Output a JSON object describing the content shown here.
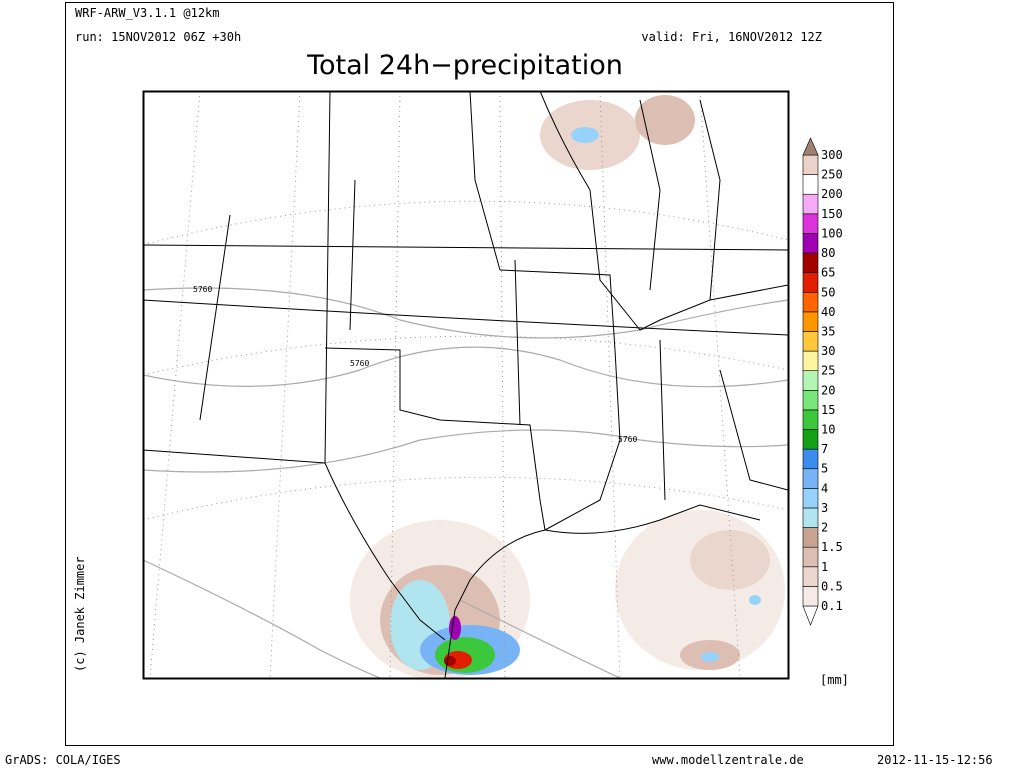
{
  "header": {
    "model": "WRF-ARW_V3.1.1 @12km",
    "run": "run: 15NOV2012 06Z +30h",
    "valid": "valid: Fri, 16NOV2012 12Z",
    "title": "Total 24h−precipitation"
  },
  "contour_labels": [
    "5760",
    "5760",
    "5760"
  ],
  "legend": {
    "labels": [
      "0.1",
      "0.5",
      "1",
      "1.5",
      "2",
      "3",
      "4",
      "5",
      "7",
      "10",
      "15",
      "20",
      "25",
      "30",
      "35",
      "40",
      "50",
      "65",
      "80",
      "100",
      "150",
      "200",
      "250",
      "300"
    ],
    "colors": [
      "#f5ebe6",
      "#ead6cc",
      "#dcbfb2",
      "#c9a493",
      "#b0e4ee",
      "#96d2fa",
      "#78b4f5",
      "#3c8cf0",
      "#14a014",
      "#3cc83c",
      "#78e678",
      "#b4f5b4",
      "#fff5a0",
      "#ffc83c",
      "#ff9600",
      "#ff6400",
      "#e11e00",
      "#a50000",
      "#a000b4",
      "#dc32dc",
      "#f5aaf5",
      "#ffffff",
      "#ead2c8",
      "#a08070"
    ],
    "below_color": "#ffffff",
    "unit": "[mm]"
  },
  "credit": "(c) Janek Zimmer",
  "footer": {
    "left": "GrADS: COLA/IGES",
    "center": "www.modellzentrale.de",
    "right": "2012-11-15-12:56"
  }
}
